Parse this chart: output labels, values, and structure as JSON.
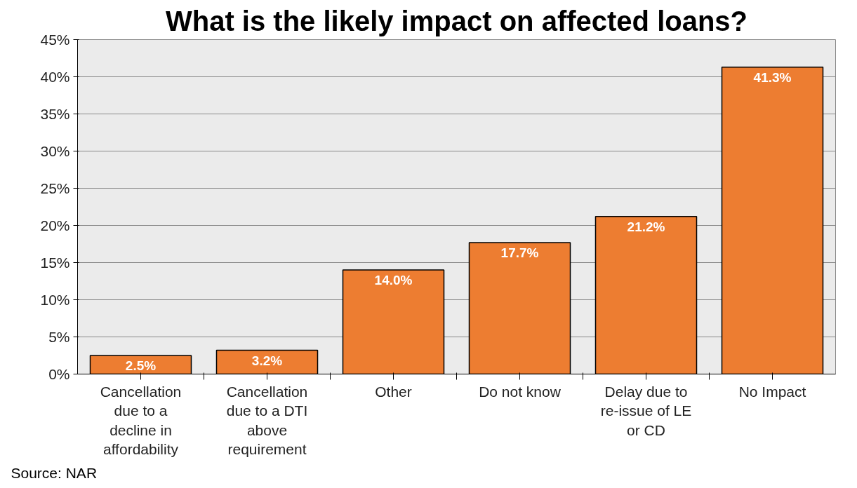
{
  "chart_data": {
    "type": "bar",
    "title": "What is the likely impact on affected loans?",
    "categories": [
      "Cancellation due to a decline in affordability",
      "Cancellation due to a DTI above requirement",
      "Other",
      "Do not know",
      "Delay due to re-issue of LE or CD",
      "No Impact"
    ],
    "values": [
      2.5,
      3.2,
      14.0,
      17.7,
      21.2,
      41.3
    ],
    "value_labels": [
      "2.5%",
      "3.2%",
      "14.0%",
      "17.7%",
      "21.2%",
      "41.3%"
    ],
    "color": "#ed7d31",
    "ylim": [
      0,
      45
    ],
    "yticks": [
      {
        "value": 0,
        "label": "0%"
      },
      {
        "value": 5,
        "label": "5%"
      },
      {
        "value": 10,
        "label": "10%"
      },
      {
        "value": 15,
        "label": "15%"
      },
      {
        "value": 20,
        "label": "20%"
      },
      {
        "value": 25,
        "label": "25%"
      },
      {
        "value": 30,
        "label": "30%"
      },
      {
        "value": 35,
        "label": "35%"
      },
      {
        "value": 40,
        "label": "40%"
      },
      {
        "value": 45,
        "label": "45%"
      }
    ],
    "grid": "y",
    "annotations": [
      "Source: NAR"
    ]
  }
}
